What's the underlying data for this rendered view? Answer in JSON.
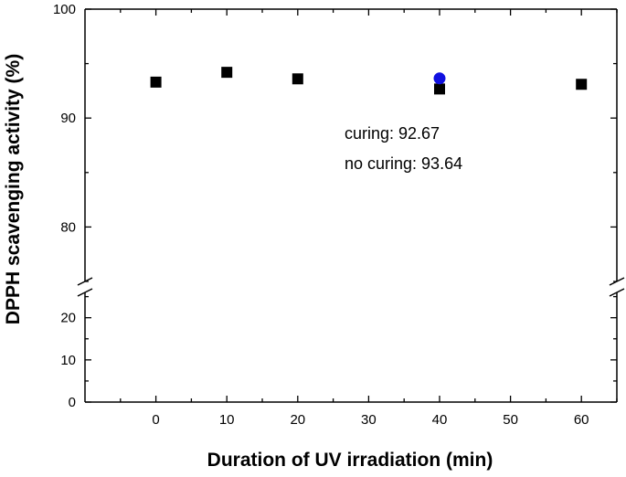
{
  "chart_data": {
    "type": "scatter",
    "title": "",
    "xlabel": "Duration of UV irradiation (min)",
    "ylabel": "DPPH scavenging activity (%)",
    "xlim": [
      -10,
      65
    ],
    "x_ticks": [
      0,
      10,
      20,
      30,
      40,
      50,
      60
    ],
    "y_axis_break": true,
    "y_segments": [
      {
        "range": [
          0,
          26
        ],
        "ticks": [
          0,
          10,
          20
        ]
      },
      {
        "range": [
          75,
          100
        ],
        "ticks": [
          80,
          90,
          100
        ]
      }
    ],
    "series": [
      {
        "marker": "square",
        "color": "#000000",
        "points": [
          {
            "x": 0,
            "y": 93.3
          },
          {
            "x": 10,
            "y": 94.2
          },
          {
            "x": 20,
            "y": 93.6
          },
          {
            "x": 40,
            "y": 92.67
          },
          {
            "x": 60,
            "y": 93.1
          }
        ]
      },
      {
        "marker": "circle",
        "color": "#1010e0",
        "points": [
          {
            "x": 40,
            "y": 93.64
          }
        ]
      }
    ],
    "annotations": [
      "curing: 92.67",
      "no curing: 93.64"
    ],
    "grid": false,
    "legend": "none"
  }
}
